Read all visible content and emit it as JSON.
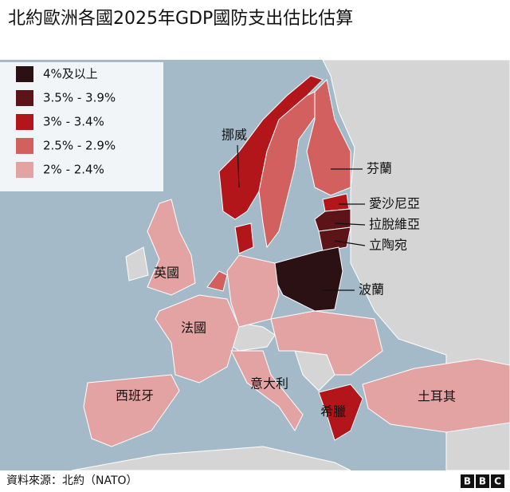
{
  "title": "北約歐洲各國2025年GDP國防支出估比估算",
  "legend": [
    {
      "label": "4%及以上",
      "color": "#2b1113"
    },
    {
      "label": "3.5% - 3.9%",
      "color": "#5c1418"
    },
    {
      "label": "3% - 3.4%",
      "color": "#b2161b"
    },
    {
      "label": "2.5% - 2.9%",
      "color": "#d1605f"
    },
    {
      "label": "2% - 2.4%",
      "color": "#e3a3a3"
    }
  ],
  "countries": [
    "挪威",
    "芬蘭",
    "愛沙尼亞",
    "拉脫維亞",
    "立陶宛",
    "英國",
    "波蘭",
    "法國",
    "意大利",
    "西班牙",
    "希臘",
    "土耳其"
  ],
  "source": "資料來源：北約（NATO）",
  "logo": [
    "B",
    "B",
    "C"
  ]
}
